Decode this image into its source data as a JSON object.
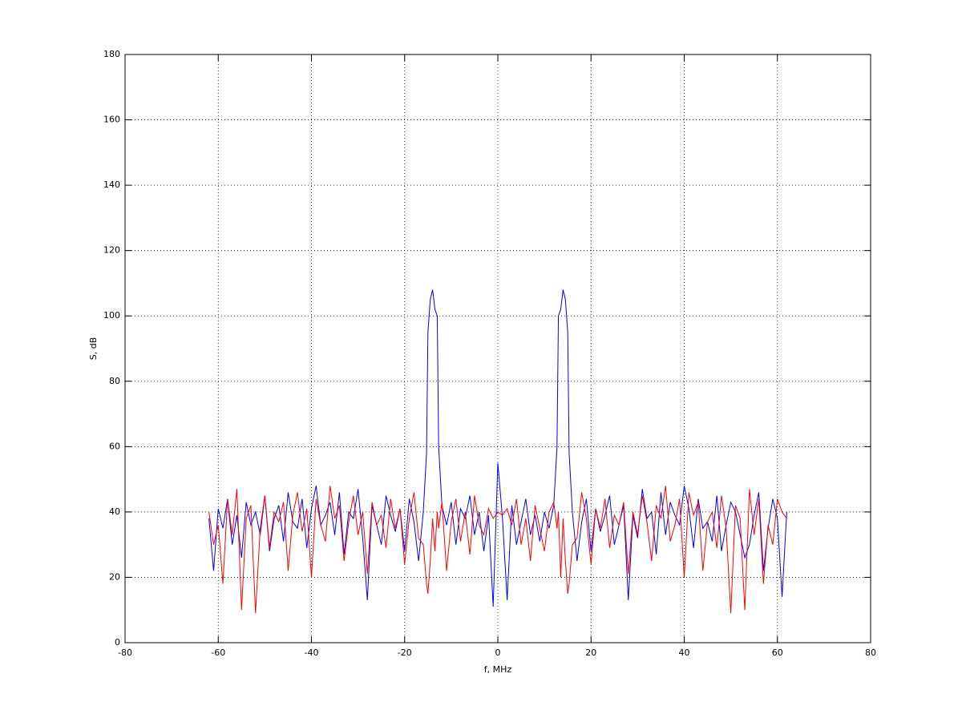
{
  "chart_data": {
    "type": "line",
    "xlabel": "f, MHz",
    "ylabel": "S, dB",
    "x": [
      -62,
      -61,
      -60,
      -59,
      -58,
      -57,
      -56,
      -55,
      -54,
      -53,
      -52,
      -51,
      -50,
      -49,
      -48,
      -47,
      -46,
      -45,
      -44,
      -43,
      -42,
      -41,
      -40,
      -39,
      -38,
      -37,
      -36,
      -35,
      -34,
      -33,
      -32,
      -31,
      -30,
      -29,
      -28,
      -27,
      -26,
      -25,
      -24,
      -23,
      -22,
      -21,
      -20,
      -19,
      -18,
      -17,
      -16,
      -15.3,
      -15,
      -14.5,
      -14,
      -13.5,
      -13,
      -12.7,
      -12,
      -11,
      -10,
      -9,
      -8,
      -7,
      -6,
      -5,
      -4,
      -3,
      -2,
      -1,
      0,
      1,
      2,
      3,
      4,
      5,
      6,
      7,
      8,
      9,
      10,
      11,
      12,
      12.7,
      13,
      13.5,
      14,
      14.5,
      15,
      15.3,
      16,
      17,
      18,
      19,
      20,
      21,
      22,
      23,
      24,
      25,
      26,
      27,
      28,
      29,
      30,
      31,
      32,
      33,
      34,
      35,
      36,
      37,
      38,
      39,
      40,
      41,
      42,
      43,
      44,
      45,
      46,
      47,
      48,
      49,
      50,
      51,
      52,
      53,
      54,
      55,
      56,
      57,
      58,
      59,
      60,
      61,
      62
    ],
    "series": [
      {
        "color": "#0000ff",
        "values": [
          38,
          22,
          41,
          35,
          44,
          30,
          39,
          26,
          43,
          36,
          40,
          33,
          45,
          28,
          38,
          42,
          31,
          46,
          37,
          35,
          44,
          29,
          41,
          48,
          36,
          39,
          43,
          33,
          46,
          27,
          40,
          38,
          47,
          32,
          13,
          42,
          36,
          30,
          45,
          39,
          34,
          41,
          28,
          44,
          37,
          25,
          40,
          58,
          95,
          105,
          108,
          102,
          100,
          60,
          42,
          36,
          43,
          30,
          41,
          38,
          45,
          33,
          40,
          28,
          39,
          11,
          55,
          38,
          13,
          42,
          30,
          37,
          44,
          33,
          39,
          31,
          40,
          35,
          42,
          60,
          100,
          102,
          108,
          105,
          95,
          58,
          40,
          25,
          37,
          44,
          28,
          41,
          34,
          39,
          45,
          30,
          36,
          42,
          13,
          39,
          32,
          47,
          38,
          40,
          27,
          46,
          33,
          43,
          39,
          36,
          48,
          41,
          29,
          44,
          35,
          37,
          31,
          45,
          28,
          36,
          43,
          40,
          33,
          26,
          30,
          39,
          46,
          22,
          35,
          44,
          38,
          14,
          40
        ]
      },
      {
        "color": "#ff0000",
        "values": [
          40,
          30,
          36,
          18,
          44,
          33,
          47,
          10,
          38,
          42,
          9,
          35,
          45,
          29,
          40,
          37,
          43,
          22,
          39,
          46,
          34,
          41,
          20,
          44,
          36,
          31,
          48,
          38,
          42,
          25,
          37,
          45,
          33,
          40,
          21,
          43,
          36,
          39,
          29,
          44,
          35,
          41,
          24,
          38,
          46,
          32,
          30,
          18,
          15,
          25,
          38,
          28,
          40,
          35,
          43,
          22,
          37,
          44,
          31,
          40,
          27,
          45,
          36,
          33,
          41,
          38,
          40,
          39,
          41,
          36,
          44,
          30,
          38,
          25,
          42,
          35,
          28,
          40,
          43,
          35,
          40,
          20,
          38,
          25,
          15,
          18,
          30,
          32,
          46,
          38,
          24,
          41,
          35,
          44,
          29,
          39,
          36,
          43,
          21,
          40,
          33,
          45,
          37,
          25,
          42,
          38,
          48,
          31,
          36,
          44,
          20,
          46,
          39,
          43,
          22,
          37,
          40,
          29,
          45,
          35,
          9,
          42,
          38,
          10,
          47,
          33,
          44,
          18,
          36,
          30,
          44,
          40,
          38
        ]
      }
    ],
    "xlim": [
      -80,
      80
    ],
    "xticks": [
      -80,
      -60,
      -40,
      -20,
      0,
      20,
      40,
      60,
      80
    ],
    "ylim": [
      0,
      180
    ],
    "yticks": [
      0,
      20,
      40,
      60,
      80,
      100,
      120,
      140,
      160,
      180
    ],
    "grid": true
  }
}
